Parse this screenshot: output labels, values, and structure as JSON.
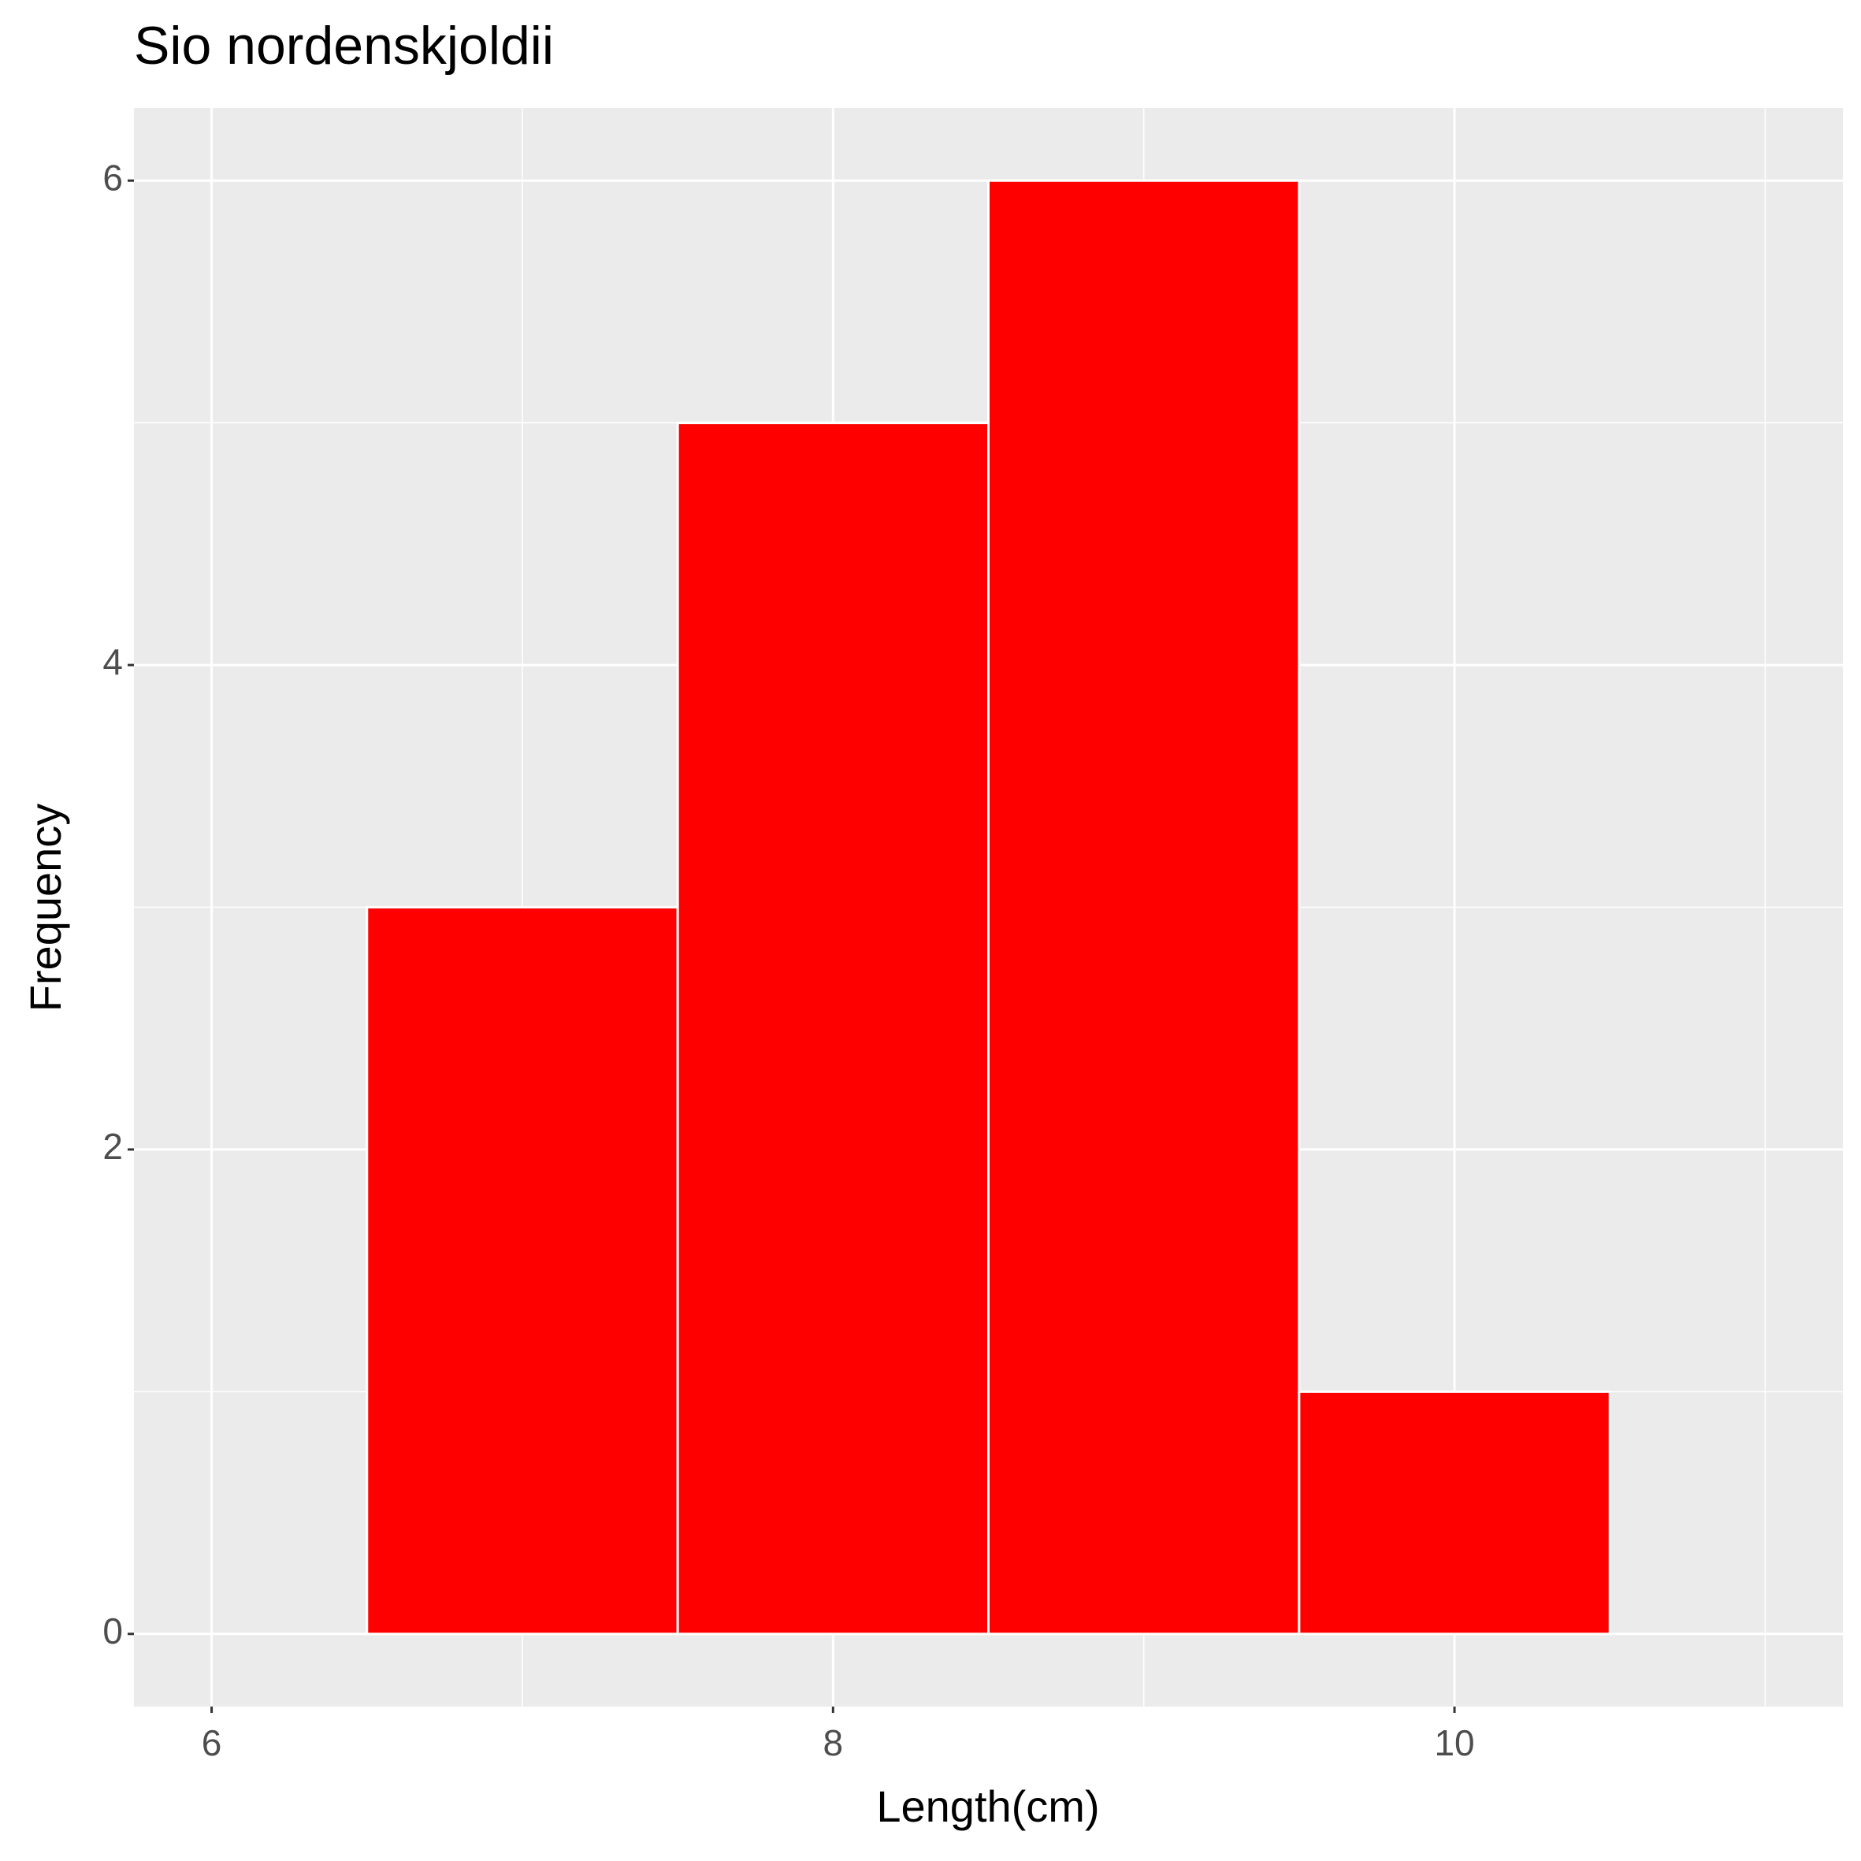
{
  "chart_data": {
    "type": "histogram",
    "title": "Sio nordenskjoldii",
    "x_label": "Length(cm)",
    "y_label": "Frequency",
    "bins": [
      6.5,
      7.5,
      8.5,
      9.5,
      10.5
    ],
    "values": [
      3,
      5,
      6,
      1
    ],
    "color": "#ff0000",
    "xlim": [
      5.75,
      11.25
    ],
    "ylim": [
      -0.3,
      6.3
    ],
    "xticks": [
      6,
      8,
      10
    ],
    "yticks": [
      0,
      2,
      4,
      6
    ],
    "x_minor_ticks": [
      7,
      9,
      11
    ],
    "y_minor_ticks": [
      1,
      3,
      5
    ],
    "grid": true
  }
}
